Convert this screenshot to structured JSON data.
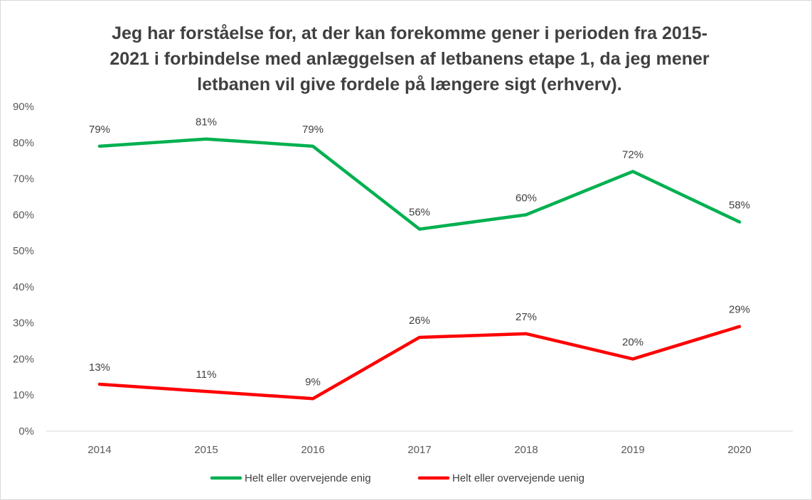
{
  "chart_data": {
    "type": "line",
    "title": "Jeg har forståelse for, at der kan forekomme gener i perioden fra 2015-\n2021 i forbindelse med anlæggelsen af letbanens etape 1, da jeg mener\nletbanen vil give fordele på længere sigt (erhverv).",
    "xlabel": "",
    "ylabel": "",
    "categories": [
      "2014",
      "2015",
      "2016",
      "2017",
      "2018",
      "2019",
      "2020"
    ],
    "ylim": [
      0,
      90
    ],
    "yticks": [
      "0%",
      "10%",
      "20%",
      "30%",
      "40%",
      "50%",
      "60%",
      "70%",
      "80%",
      "90%"
    ],
    "grid": false,
    "legend_position": "bottom",
    "series": [
      {
        "name": "Helt eller overvejende enig",
        "color": "#00b050",
        "values": [
          79,
          81,
          79,
          56,
          60,
          72,
          58
        ],
        "labels": [
          "79%",
          "81%",
          "79%",
          "56%",
          "60%",
          "72%",
          "58%"
        ]
      },
      {
        "name": "Helt eller overvejende uenig",
        "color": "#ff0000",
        "values": [
          13,
          11,
          9,
          26,
          27,
          20,
          29
        ],
        "labels": [
          "13%",
          "11%",
          "9%",
          "26%",
          "27%",
          "20%",
          "29%"
        ]
      }
    ]
  }
}
